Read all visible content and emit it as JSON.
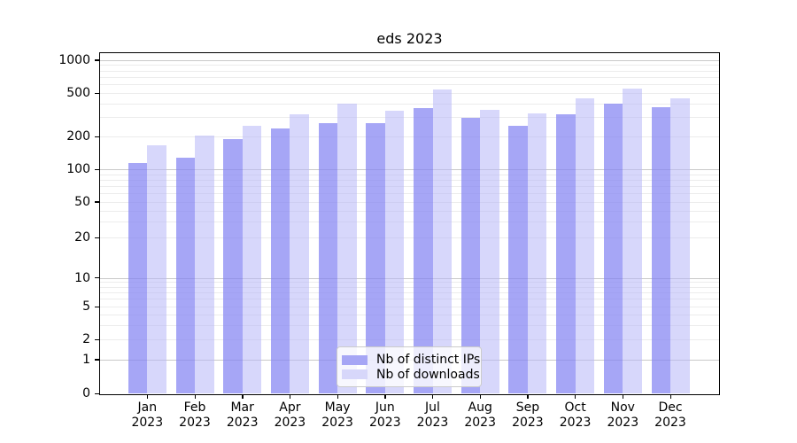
{
  "chart_data": {
    "type": "bar",
    "title": "eds 2023",
    "categories": [
      "Jan 2023",
      "Feb 2023",
      "Mar 2023",
      "Apr 2023",
      "May 2023",
      "Jun 2023",
      "Jul 2023",
      "Aug 2023",
      "Sep 2023",
      "Oct 2023",
      "Nov 2023",
      "Dec 2023"
    ],
    "x_tick_months": [
      "Jan",
      "Feb",
      "Mar",
      "Apr",
      "May",
      "Jun",
      "Jul",
      "Aug",
      "Sep",
      "Oct",
      "Nov",
      "Dec"
    ],
    "x_tick_year": "2023",
    "series": [
      {
        "name": "Nb of distinct IPs",
        "color": "rgba(132,132,242,0.72)",
        "legend_color": "#a6a6f5",
        "values": [
          114,
          127,
          190,
          238,
          265,
          266,
          364,
          296,
          249,
          322,
          400,
          371
        ]
      },
      {
        "name": "Nb of downloads",
        "color": "rgba(183,183,247,0.55)",
        "legend_color": "#d7d7fa",
        "values": [
          165,
          203,
          252,
          320,
          397,
          342,
          535,
          353,
          327,
          450,
          548,
          450
        ]
      }
    ],
    "yscale": "symlog",
    "yticks": [
      0,
      1,
      2,
      5,
      10,
      20,
      50,
      100,
      200,
      500,
      1000
    ],
    "ylim": [
      0,
      1150
    ],
    "grid": true,
    "grid_major_color": "#c9c9c9",
    "grid_minor_color": "#ececec",
    "legend_position": "lower center"
  }
}
